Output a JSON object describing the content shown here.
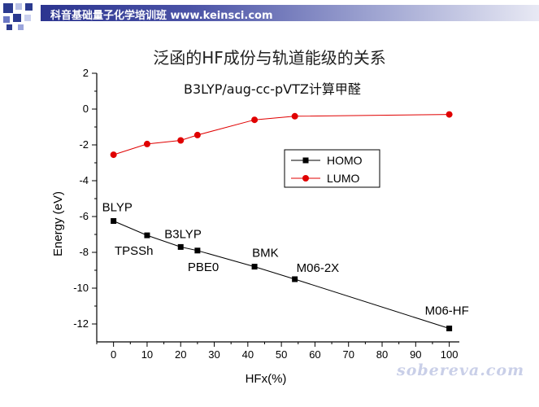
{
  "header": {
    "banner_text": "科音基础量子化学培训班 www.keinsci.com"
  },
  "slide": {
    "title": "泛函的HF成份与轨道能级的关系",
    "watermark": "sobereva.com"
  },
  "chart_data": {
    "type": "line",
    "title": "",
    "subtitle": "B3LYP/aug-cc-pVTZ计算甲醛",
    "xlabel": "HFx(%)",
    "ylabel": "Energy (eV)",
    "xlim": [
      -5,
      103
    ],
    "ylim": [
      -13,
      2
    ],
    "xticks": [
      0,
      10,
      20,
      30,
      40,
      50,
      60,
      70,
      80,
      90,
      100
    ],
    "yticks": [
      2,
      0,
      -2,
      -4,
      -6,
      -8,
      -10,
      -12
    ],
    "grid": false,
    "legend_position": "center-right",
    "series": [
      {
        "name": "HOMO",
        "color": "#000000",
        "marker": "square",
        "x": [
          0,
          10,
          20,
          25,
          42,
          54,
          100
        ],
        "y": [
          -6.25,
          -7.05,
          -7.7,
          -7.9,
          -8.8,
          -9.5,
          -12.25
        ]
      },
      {
        "name": "LUMO",
        "color": "#e00000",
        "marker": "circle",
        "x": [
          0,
          10,
          20,
          25,
          42,
          54,
          100
        ],
        "y": [
          -2.55,
          -1.95,
          -1.75,
          -1.45,
          -0.6,
          -0.4,
          -0.3
        ]
      }
    ],
    "point_labels": [
      {
        "text": "BLYP",
        "x": 0,
        "y": -6.25,
        "pos": "above-left"
      },
      {
        "text": "TPSSh",
        "x": 10,
        "y": -7.05,
        "pos": "below"
      },
      {
        "text": "B3LYP",
        "x": 20,
        "y": -7.7,
        "pos": "above"
      },
      {
        "text": "PBE0",
        "x": 25,
        "y": -7.9,
        "pos": "below"
      },
      {
        "text": "BMK",
        "x": 42,
        "y": -8.8,
        "pos": "above"
      },
      {
        "text": "M06-2X",
        "x": 54,
        "y": -9.5,
        "pos": "above-right"
      },
      {
        "text": "M06-HF",
        "x": 100,
        "y": -12.25,
        "pos": "above-left"
      }
    ]
  }
}
